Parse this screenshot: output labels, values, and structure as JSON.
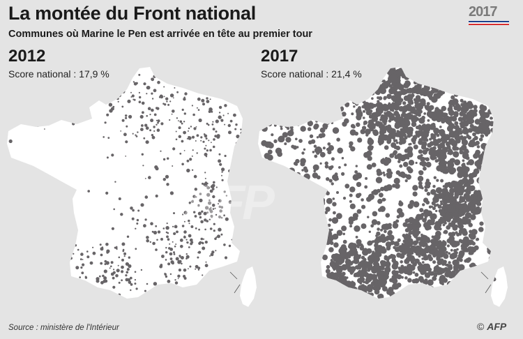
{
  "title": "La montée du Front national",
  "subtitle": "Communes où Marine le Pen est arrivée en tête au premier tour",
  "logo": {
    "text": "2017",
    "colors": [
      "#1b3f8b",
      "#ffffff",
      "#d62d2d"
    ]
  },
  "maps": [
    {
      "year": "2012",
      "score_label": "Score national : 17,9 %",
      "fill": "#676467",
      "density": "low"
    },
    {
      "year": "2017",
      "score_label": "Score national : 21,4 %",
      "fill": "#676467",
      "density": "high"
    }
  ],
  "watermark": "AFP",
  "source": "Source : ministère de l'Intérieur",
  "copyright": {
    "symbol": "©",
    "agency": "AFP"
  },
  "colors": {
    "background": "#e4e4e4",
    "land": "#ffffff",
    "fn_communes": "#676467"
  }
}
